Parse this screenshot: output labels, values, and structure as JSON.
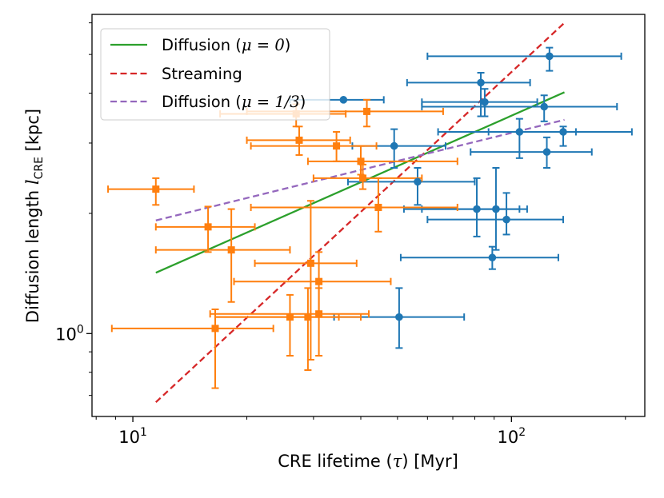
{
  "chart_data": {
    "type": "scatter",
    "xscale": "log",
    "yscale": "log",
    "xlim": [
      7.8,
      225
    ],
    "ylim": [
      0.62,
      6.3
    ],
    "xlabel_pre": "CRE lifetime (",
    "xlabel_sym": "τ",
    "xlabel_post": ") [Myr]",
    "ylabel_pre": "Diffusion length ",
    "ylabel_sym": "l",
    "ylabel_sub": "CRE",
    "ylabel_post": " [kpc]",
    "x_major_ticks": [
      {
        "value": 10,
        "base": "10",
        "exp": "1"
      },
      {
        "value": 100,
        "base": "10",
        "exp": "2"
      }
    ],
    "y_major_ticks": [
      {
        "value": 1,
        "base": "10",
        "exp": "0"
      }
    ],
    "x_minor_ticks": [
      8,
      9,
      20,
      30,
      40,
      50,
      60,
      70,
      80,
      90,
      200
    ],
    "y_minor_ticks": [
      0.7,
      0.8,
      0.9,
      2,
      3,
      4,
      5,
      6
    ],
    "lines": [
      {
        "name": "Diffusion (μ = 0)",
        "label_pre": "Diffusion (",
        "label_math": "μ = 0",
        "label_post": ")",
        "color": "#2ca02c",
        "dash": "solid",
        "x": [
          11.5,
          138
        ],
        "y": [
          1.42,
          4.02
        ]
      },
      {
        "name": "Streaming",
        "label_pre": "Streaming",
        "label_math": "",
        "label_post": "",
        "color": "#d62728",
        "dash": "dashed",
        "x": [
          11.5,
          138
        ],
        "y": [
          0.673,
          6.0
        ]
      },
      {
        "name": "Diffusion (μ = 1/3)",
        "label_pre": "Diffusion (",
        "label_math": "μ = 1/3",
        "label_post": ")",
        "color": "#9467bd",
        "dash": "dashed",
        "x": [
          11.5,
          138
        ],
        "y": [
          1.92,
          3.43
        ]
      }
    ],
    "series": [
      {
        "name": "blue",
        "color": "#1f77b4",
        "marker": "circle",
        "points": [
          {
            "x": 36.0,
            "xlo": 26.0,
            "xhi": 46.0,
            "y": 3.85,
            "ylo": 3.85,
            "yhi": 3.85
          },
          {
            "x": 49.0,
            "xlo": 38.0,
            "xhi": 67.0,
            "y": 2.95,
            "ylo": 2.6,
            "yhi": 3.25
          },
          {
            "x": 56.5,
            "xlo": 37.0,
            "xhi": 80.0,
            "y": 2.4,
            "ylo": 2.1,
            "yhi": 2.6
          },
          {
            "x": 50.5,
            "xlo": 34.0,
            "xhi": 75.0,
            "y": 1.1,
            "ylo": 0.92,
            "yhi": 1.3
          },
          {
            "x": 83.0,
            "xlo": 53.0,
            "xhi": 112.0,
            "y": 4.25,
            "ylo": 3.5,
            "yhi": 4.5
          },
          {
            "x": 85.0,
            "xlo": 58.0,
            "xhi": 117.0,
            "y": 3.8,
            "ylo": 3.5,
            "yhi": 4.1
          },
          {
            "x": 126.0,
            "xlo": 60.0,
            "xhi": 195.0,
            "y": 4.95,
            "ylo": 4.55,
            "yhi": 5.2
          },
          {
            "x": 122.0,
            "xlo": 58.0,
            "xhi": 190.0,
            "y": 3.7,
            "ylo": 3.4,
            "yhi": 3.95
          },
          {
            "x": 105.0,
            "xlo": 64.0,
            "xhi": 148.0,
            "y": 3.2,
            "ylo": 2.75,
            "yhi": 3.45
          },
          {
            "x": 137.0,
            "xlo": 87.0,
            "xhi": 208.0,
            "y": 3.2,
            "ylo": 2.95,
            "yhi": 3.3
          },
          {
            "x": 124.0,
            "xlo": 78.0,
            "xhi": 163.0,
            "y": 2.85,
            "ylo": 2.6,
            "yhi": 3.1
          },
          {
            "x": 81.0,
            "xlo": 52.0,
            "xhi": 105.0,
            "y": 2.05,
            "ylo": 1.75,
            "yhi": 2.45
          },
          {
            "x": 91.0,
            "xlo": 58.0,
            "xhi": 110.0,
            "y": 2.05,
            "ylo": 1.62,
            "yhi": 2.6
          },
          {
            "x": 97.0,
            "xlo": 60.0,
            "xhi": 137.0,
            "y": 1.93,
            "ylo": 1.77,
            "yhi": 2.25
          },
          {
            "x": 89.0,
            "xlo": 51.0,
            "xhi": 133.0,
            "y": 1.55,
            "ylo": 1.45,
            "yhi": 1.65
          }
        ]
      },
      {
        "name": "orange",
        "color": "#ff7f0e",
        "marker": "square",
        "points": [
          {
            "x": 11.5,
            "xlo": 8.6,
            "xhi": 14.5,
            "y": 2.3,
            "ylo": 2.1,
            "yhi": 2.45
          },
          {
            "x": 15.8,
            "xlo": 11.5,
            "xhi": 21.0,
            "y": 1.85,
            "ylo": 1.6,
            "yhi": 2.08
          },
          {
            "x": 18.2,
            "xlo": 11.5,
            "xhi": 26.0,
            "y": 1.62,
            "ylo": 1.2,
            "yhi": 2.05
          },
          {
            "x": 16.5,
            "xlo": 8.8,
            "xhi": 23.5,
            "y": 1.03,
            "ylo": 0.73,
            "yhi": 1.15
          },
          {
            "x": 27.0,
            "xlo": 17.0,
            "xhi": 36.5,
            "y": 3.55,
            "ylo": 3.3,
            "yhi": 3.75
          },
          {
            "x": 27.5,
            "xlo": 20.0,
            "xhi": 37.5,
            "y": 3.05,
            "ylo": 2.8,
            "yhi": 3.3
          },
          {
            "x": 34.5,
            "xlo": 20.5,
            "xhi": 44.0,
            "y": 2.95,
            "ylo": 2.7,
            "yhi": 3.2
          },
          {
            "x": 41.5,
            "xlo": 20.0,
            "xhi": 66.0,
            "y": 3.6,
            "ylo": 3.3,
            "yhi": 3.85
          },
          {
            "x": 40.0,
            "xlo": 29.0,
            "xhi": 72.0,
            "y": 2.7,
            "ylo": 2.5,
            "yhi": 2.95
          },
          {
            "x": 40.5,
            "xlo": 30.0,
            "xhi": 58.0,
            "y": 2.45,
            "ylo": 2.3,
            "yhi": 2.65
          },
          {
            "x": 44.5,
            "xlo": 20.5,
            "xhi": 72.0,
            "y": 2.07,
            "ylo": 1.8,
            "yhi": 2.45
          },
          {
            "x": 29.5,
            "xlo": 21.0,
            "xhi": 39.0,
            "y": 1.5,
            "ylo": 0.86,
            "yhi": 2.15
          },
          {
            "x": 31.0,
            "xlo": 18.5,
            "xhi": 48.0,
            "y": 1.35,
            "ylo": 1.1,
            "yhi": 1.6
          },
          {
            "x": 26.0,
            "xlo": 16.5,
            "xhi": 35.0,
            "y": 1.1,
            "ylo": 0.88,
            "yhi": 1.25
          },
          {
            "x": 29.0,
            "xlo": 16.5,
            "xhi": 40.0,
            "y": 1.1,
            "ylo": 0.81,
            "yhi": 1.3
          },
          {
            "x": 31.0,
            "xlo": 16.0,
            "xhi": 42.0,
            "y": 1.12,
            "ylo": 0.88,
            "yhi": 1.3
          }
        ]
      }
    ],
    "legend_position": "top-left"
  }
}
